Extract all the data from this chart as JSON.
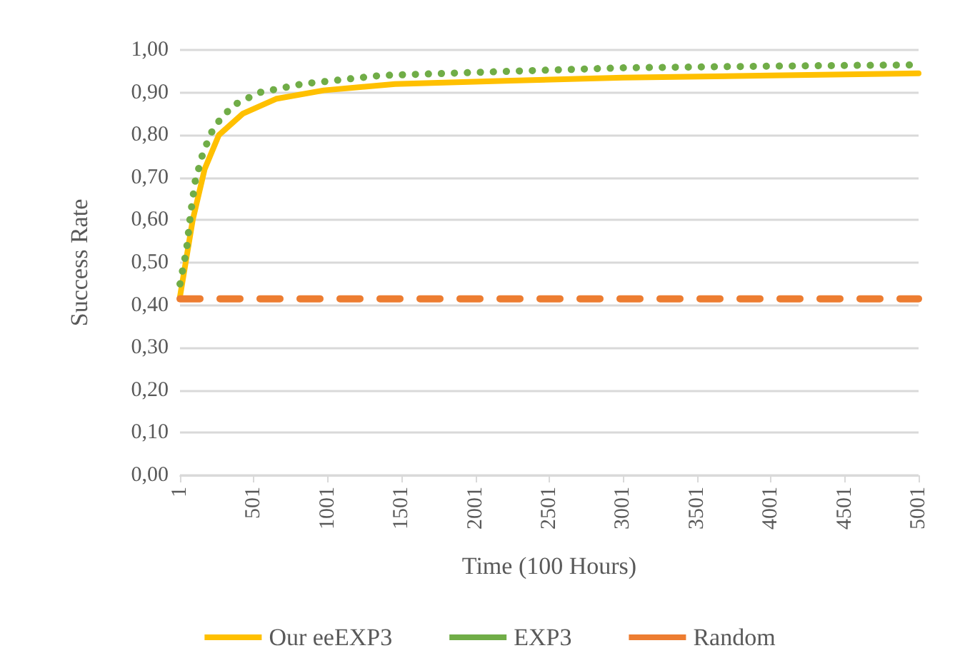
{
  "chart_data": {
    "type": "line",
    "xlabel": "Time (100 Hours)",
    "ylabel": "Success Rate",
    "xlim": [
      1,
      5001
    ],
    "xticks": [
      1,
      501,
      1001,
      1501,
      2001,
      2501,
      3001,
      3501,
      4001,
      4501,
      5001
    ],
    "ylim": [
      0,
      1
    ],
    "yticks": [
      {
        "value": 0,
        "label": "0,00"
      },
      {
        "value": 0.1,
        "label": "0,10"
      },
      {
        "value": 0.2,
        "label": "0,20"
      },
      {
        "value": 0.3,
        "label": "0,30"
      },
      {
        "value": 0.4,
        "label": "0,40"
      },
      {
        "value": 0.5,
        "label": "0,50"
      },
      {
        "value": 0.6,
        "label": "0,60"
      },
      {
        "value": 0.7,
        "label": "0,70"
      },
      {
        "value": 0.8,
        "label": "0,80"
      },
      {
        "value": 0.9,
        "label": "0,90"
      },
      {
        "value": 1,
        "label": "1,00"
      }
    ],
    "grid": "y",
    "legend": "bottom",
    "marker": "none",
    "series": [
      {
        "name": "Our eeEXP3",
        "color": "#ffc000",
        "line_style": "solid",
        "x": [
          1,
          87,
          168,
          264,
          425,
          651,
          974,
          1457,
          2244,
          3000,
          4000,
          5001
        ],
        "values": [
          0.42,
          0.6,
          0.72,
          0.8,
          0.85,
          0.885,
          0.905,
          0.92,
          0.928,
          0.935,
          0.94,
          0.945
        ]
      },
      {
        "name": "EXP3",
        "color": "#70ad47",
        "line_style": "dotted",
        "x": [
          1,
          45,
          71,
          103,
          158,
          232,
          361,
          538,
          828,
          1360,
          2244,
          3000,
          4000,
          5001
        ],
        "values": [
          0.45,
          0.53,
          0.61,
          0.69,
          0.76,
          0.82,
          0.87,
          0.9,
          0.92,
          0.94,
          0.95,
          0.958,
          0.962,
          0.965
        ]
      },
      {
        "name": "Random",
        "color": "#ed7d31",
        "line_style": "dashed",
        "x": [
          1,
          5001
        ],
        "values": [
          0.415,
          0.415
        ]
      }
    ]
  }
}
